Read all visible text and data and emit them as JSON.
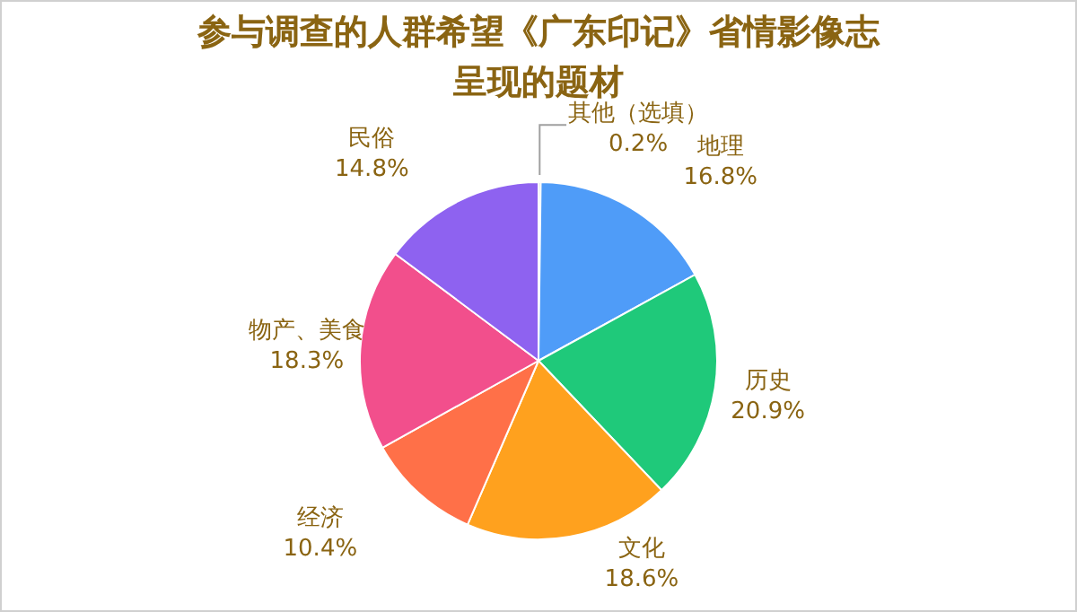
{
  "chart_data": {
    "type": "pie",
    "title": "参与调查的人群希望《广东印记》省情影像志呈现的题材",
    "categories": [
      "其他（选填）",
      "地理",
      "历史",
      "文化",
      "经济",
      "物产、美食",
      "民俗"
    ],
    "values": [
      0.2,
      16.8,
      20.9,
      18.6,
      10.4,
      18.3,
      14.8
    ],
    "value_labels": [
      "0.2%",
      "16.8%",
      "20.9%",
      "18.6%",
      "10.4%",
      "18.3%",
      "14.8%"
    ],
    "colors": [
      "#9a9a9a",
      "#4f9cf8",
      "#1fc97a",
      "#ffa11e",
      "#ff7048",
      "#f24f8c",
      "#8e62f0"
    ],
    "legend": false
  }
}
